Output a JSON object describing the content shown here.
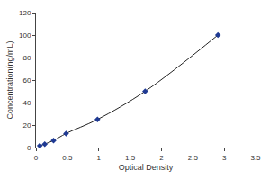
{
  "chart_data": {
    "type": "scatter",
    "x_label": "Optical Density",
    "y_label": "Concentration(ng/mL)",
    "x": [
      0.06,
      0.14,
      0.28,
      0.48,
      0.98,
      1.74,
      2.9
    ],
    "values": [
      1.6,
      3.1,
      6.3,
      12.5,
      25,
      50,
      100
    ],
    "color": "#1f3a93",
    "marker": "diamond",
    "line_style": "solid",
    "xlim": [
      0,
      3.5
    ],
    "xticks": [
      0,
      0.5,
      1,
      1.5,
      2,
      2.5,
      3,
      3.5
    ],
    "ylim": [
      0,
      120
    ],
    "yticks": [
      0,
      20,
      40,
      60,
      80,
      100,
      120
    ],
    "grid": false
  }
}
